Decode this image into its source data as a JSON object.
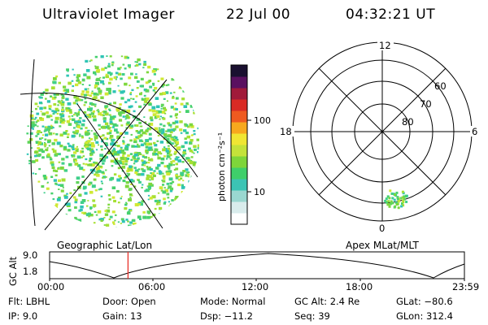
{
  "header": {
    "title": "Ultraviolet Imager",
    "date": "22 Jul 00",
    "time": "04:32:21 UT"
  },
  "geo_panel": {
    "label": "Geographic Lat/Lon"
  },
  "colorbar": {
    "unit_label": "photon cm⁻²s⁻¹",
    "ticks": [
      "100",
      "10"
    ],
    "scale": "log"
  },
  "polar_panel": {
    "label": "Apex MLat/MLT",
    "mlt_labels": [
      "12",
      "18",
      "6",
      "0"
    ],
    "lat_labels": [
      "60",
      "70",
      "80"
    ]
  },
  "alt_plot": {
    "ylabel": "GC Alt",
    "yticks": [
      "9.0",
      "1.8"
    ],
    "xticks": [
      "00:00",
      "06:00",
      "12:00",
      "18:00",
      "23:59"
    ],
    "current_time_fraction": 0.189,
    "marker_color": "#e8312a"
  },
  "info": {
    "flt": "Flt: LBHL",
    "ip": "IP:  9.0",
    "door": "Door: Open",
    "gain": "Gain: 13",
    "mode": "Mode: Normal",
    "dsp": "Dsp:  −11.2",
    "gcalt": "GC Alt: 2.4 Re",
    "seq": "Seq: 39",
    "glat": "GLat: −80.6",
    "glon": "GLon: 312.4"
  },
  "colors": {
    "speckle": [
      "#3fcf8a",
      "#47d16e",
      "#7ed73c",
      "#a6e033",
      "#2ec4b5",
      "#cfe834",
      "#5fd45a"
    ],
    "bar": [
      "#ffffff",
      "#d9ecec",
      "#9ad7d0",
      "#3cc4b4",
      "#3fcf6a",
      "#7ed53a",
      "#c4e23a",
      "#f0e633",
      "#f7a81e",
      "#ef5a20",
      "#d92a24",
      "#a01a3a",
      "#5a1060",
      "#1a1030"
    ]
  }
}
